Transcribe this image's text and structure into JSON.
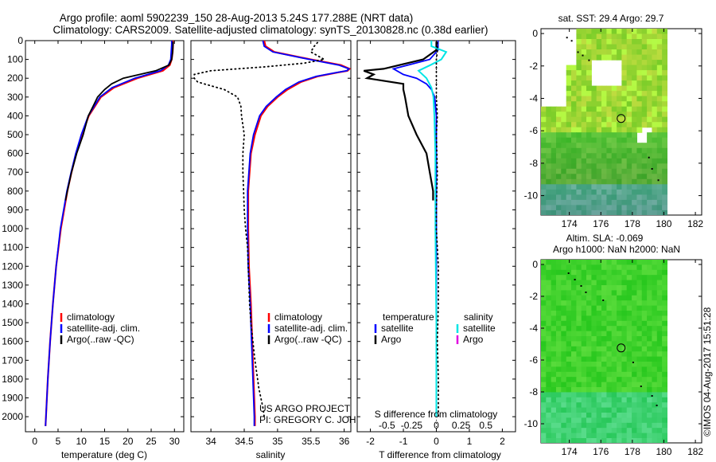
{
  "title": {
    "line1": "Argo profile: aoml 5902239_150 28-Aug-2013 5.24S 177.288E (NRT data)",
    "line2": "Climatology: CARS2009. Satellite-adjusted climatology: synTS_20130828.nc (0.38d earlier)"
  },
  "chart_data": [
    {
      "type": "line",
      "name": "temperature",
      "xlabel": "temperature (deg C)",
      "ylabel": "",
      "xlim": [
        -2,
        32
      ],
      "ylim": [
        2080,
        0
      ],
      "xticks": [
        0,
        5,
        10,
        15,
        20,
        25,
        30
      ],
      "xticklabels": [
        "0",
        "5",
        "10",
        "15",
        "20",
        "25",
        "30"
      ],
      "yticks": [
        0,
        100,
        200,
        300,
        400,
        500,
        600,
        700,
        800,
        900,
        1000,
        1100,
        1200,
        1300,
        1400,
        1500,
        1600,
        1700,
        1800,
        1900,
        2000
      ],
      "yticklabels": [
        "0",
        "100",
        "200",
        "300",
        "400",
        "500",
        "600",
        "700",
        "800",
        "900",
        "1000",
        "1100",
        "1200",
        "1300",
        "1400",
        "1500",
        "1600",
        "1700",
        "1800",
        "1900",
        "2000"
      ],
      "legend": [
        "climatology",
        "satellite-adj. clim.",
        "Argo(..raw -QC)"
      ],
      "series": [
        {
          "name": "climatology",
          "color": "#ff0000",
          "depth": [
            0,
            20,
            60,
            100,
            130,
            160,
            200,
            250,
            300,
            400,
            500,
            600,
            700,
            800,
            900,
            1000,
            1200,
            1400,
            1600,
            1800,
            2000,
            2050
          ],
          "value": [
            29.7,
            29.7,
            29.6,
            29.4,
            29.0,
            27.5,
            22.0,
            17.0,
            14.2,
            11.6,
            10.1,
            8.9,
            7.9,
            7.0,
            6.3,
            5.6,
            4.6,
            3.9,
            3.3,
            2.8,
            2.4,
            2.3
          ]
        },
        {
          "name": "satellite-adj. clim.",
          "color": "#0000ff",
          "depth": [
            0,
            20,
            60,
            100,
            130,
            160,
            200,
            250,
            300,
            400,
            500,
            600,
            700,
            800,
            900,
            1000,
            1200,
            1400,
            1600,
            1800,
            2000,
            2050
          ],
          "value": [
            29.4,
            29.4,
            29.3,
            29.2,
            28.7,
            27.0,
            21.5,
            16.6,
            14.0,
            11.5,
            10.0,
            8.8,
            7.8,
            6.9,
            6.2,
            5.5,
            4.6,
            3.9,
            3.3,
            2.8,
            2.4,
            2.3
          ]
        },
        {
          "name": "Argo(..raw -QC)",
          "color": "#000000",
          "depth": [
            5,
            20,
            60,
            100,
            130,
            160,
            200,
            230,
            260,
            300,
            350,
            400,
            500,
            600,
            700,
            800,
            850
          ],
          "value": [
            29.7,
            29.7,
            29.6,
            29.4,
            28.8,
            26.0,
            19.0,
            16.5,
            15.0,
            13.5,
            12.5,
            11.5,
            10.4,
            9.0,
            7.9,
            7.0,
            6.6
          ]
        }
      ]
    },
    {
      "type": "line",
      "name": "salinity",
      "xlabel": "salinity",
      "ylabel": "",
      "xlim": [
        33.7,
        36.1
      ],
      "ylim": [
        2080,
        0
      ],
      "xticks": [
        34,
        34.5,
        35,
        35.5,
        36
      ],
      "xticklabels": [
        "34",
        "34.5",
        "35",
        "35.5",
        "36"
      ],
      "legend": [
        "climatology",
        "satellite-adj. clim.",
        "Argo(..raw -QC)"
      ],
      "series": [
        {
          "name": "climatology",
          "color": "#ff0000",
          "depth": [
            0,
            30,
            60,
            100,
            130,
            150,
            160,
            170,
            190,
            220,
            260,
            300,
            350,
            400,
            500,
            600,
            800,
            1000,
            1200,
            1400,
            1600,
            1800,
            2000,
            2050
          ],
          "value": [
            34.8,
            34.82,
            34.95,
            35.5,
            35.95,
            36.08,
            36.05,
            35.9,
            35.6,
            35.35,
            35.15,
            35.0,
            34.85,
            34.75,
            34.66,
            34.6,
            34.56,
            34.56,
            34.57,
            34.6,
            34.62,
            34.64,
            34.66,
            34.66
          ]
        },
        {
          "name": "satellite-adj. clim.",
          "color": "#0000ff",
          "depth": [
            0,
            30,
            60,
            100,
            130,
            150,
            160,
            170,
            190,
            220,
            260,
            300,
            350,
            400,
            500,
            600,
            800,
            1000,
            1200,
            1400,
            1600,
            1800,
            2000,
            2050
          ],
          "value": [
            34.78,
            34.8,
            34.93,
            35.48,
            35.92,
            36.07,
            36.04,
            35.88,
            35.58,
            35.32,
            35.12,
            34.98,
            34.83,
            34.73,
            34.64,
            34.59,
            34.55,
            34.55,
            34.56,
            34.59,
            34.61,
            34.63,
            34.65,
            34.65
          ]
        },
        {
          "name": "Argo(..raw -QC)",
          "color": "#000000",
          "style": "dotted",
          "depth": [
            10,
            30,
            60,
            80,
            100,
            120,
            140,
            160,
            180,
            200,
            220,
            240,
            260,
            280,
            300,
            350,
            400,
            450,
            500,
            600,
            700,
            800,
            900,
            1000,
            1100,
            1200,
            1300,
            1400,
            1500,
            1600,
            1700,
            1800,
            1850,
            1900,
            1950,
            2000
          ],
          "value": [
            35.6,
            35.55,
            35.5,
            35.6,
            35.7,
            35.4,
            34.8,
            34.0,
            33.75,
            33.75,
            33.8,
            34.0,
            34.2,
            34.3,
            34.4,
            34.45,
            34.46,
            34.48,
            34.5,
            34.48,
            34.48,
            34.49,
            34.5,
            34.52,
            34.55,
            34.56,
            34.57,
            34.58,
            34.6,
            34.63,
            34.66,
            34.7,
            34.72,
            34.75,
            34.78,
            34.8
          ]
        }
      ]
    },
    {
      "type": "line",
      "name": "difference",
      "xlabel_top": "S difference from climatology",
      "xlabel_bottom": "T difference from climatology",
      "xlim_T": [
        -2.4,
        2.4
      ],
      "xlim_S": [
        -0.8,
        0.8
      ],
      "ylim": [
        2080,
        0
      ],
      "xticks_T": [
        -2,
        -1,
        0,
        1,
        2
      ],
      "xticklabels_T": [
        "-2",
        "-1",
        "0",
        "1",
        "2"
      ],
      "xticks_S": [
        -0.5,
        -0.25,
        0,
        0.25,
        0.5
      ],
      "xticklabels_S": [
        "-0.5",
        "-0.25",
        "0",
        "0.25",
        "0.5"
      ],
      "legend_left_title": "temperature",
      "legend_left": [
        "satellite",
        "Argo"
      ],
      "legend_right_title": "salinity",
      "legend_right": [
        "satellite",
        "Argo"
      ],
      "series": [
        {
          "name": "T satellite",
          "color": "#0000ff",
          "depth": [
            0,
            50,
            100,
            150,
            180,
            200,
            230,
            260,
            300,
            400,
            600,
            800,
            1000,
            1500,
            2000
          ],
          "value": [
            0.05,
            0.05,
            -0.2,
            -1.3,
            -1.0,
            -0.6,
            -0.3,
            -0.15,
            -0.05,
            0,
            0,
            0,
            0,
            0,
            0
          ]
        },
        {
          "name": "T Argo",
          "color": "#000000",
          "depth": [
            5,
            50,
            100,
            150,
            160,
            180,
            200,
            230,
            260,
            300,
            350,
            400,
            500,
            600,
            700,
            800,
            850
          ],
          "value": [
            0.0,
            0.0,
            -0.4,
            -1.6,
            -2.2,
            -1.9,
            -2.1,
            -1.0,
            -1.0,
            -0.95,
            -0.9,
            -0.85,
            -0.6,
            -0.3,
            -0.2,
            -0.1,
            -0.1
          ]
        },
        {
          "name": "S satellite",
          "color": "#00e5e5",
          "depth": [
            0,
            30,
            60,
            100,
            130,
            160,
            200,
            250,
            300,
            400,
            600,
            800,
            1000,
            1500,
            2000
          ],
          "value": [
            -0.05,
            -0.05,
            0.1,
            0.05,
            -0.06,
            -0.18,
            -0.1,
            -0.05,
            -0.03,
            -0.02,
            -0.01,
            -0.01,
            -0.01,
            0,
            0
          ]
        },
        {
          "name": "S Argo",
          "color": "#000000",
          "style": "dotted",
          "depth": [
            10,
            60,
            100,
            140,
            160,
            200,
            260,
            300,
            400,
            500,
            700,
            900,
            1000,
            1200,
            1400,
            1600,
            1800,
            2000
          ],
          "value": [
            0.01,
            0.01,
            0.0,
            0.0,
            0.0,
            0.0,
            0.0,
            0.0,
            0.01,
            0.0,
            0.01,
            0.0,
            0.0,
            0.02,
            0.02,
            0.01,
            0.02,
            0.02
          ]
        }
      ]
    },
    {
      "type": "heatmap",
      "name": "sat-sst-map",
      "title": "sat. SST: 29.4  Argo: 29.7",
      "xlim": [
        172.2,
        182.4
      ],
      "ylim": [
        -11.2,
        0.3
      ],
      "xticks": [
        174,
        176,
        178,
        180,
        182
      ],
      "xticklabels": [
        "174",
        "176",
        "178",
        "180",
        "182"
      ],
      "yticks": [
        0,
        -2,
        -4,
        -6,
        -8,
        -10
      ],
      "yticklabels": [
        "0",
        "-2",
        "-4",
        "-6",
        "-8",
        "-10"
      ],
      "float_position": {
        "lon": 177.288,
        "lat": -5.24
      }
    },
    {
      "type": "heatmap",
      "name": "altimetry-map",
      "title_line1": "Altim. SLA: -0.069",
      "title_line2": "Argo h1000: NaN h2000: NaN",
      "xlim": [
        172.2,
        182.4
      ],
      "ylim": [
        -11.2,
        0.3
      ],
      "xticks": [
        174,
        176,
        178,
        180,
        182
      ],
      "xticklabels": [
        "174",
        "176",
        "178",
        "180",
        "182"
      ],
      "yticks": [
        0,
        -2,
        -4,
        -6,
        -8,
        -10
      ],
      "yticklabels": [
        "0",
        "-2",
        "-4",
        "-6",
        "-8",
        "-10"
      ],
      "float_position": {
        "lon": 177.288,
        "lat": -5.24
      }
    }
  ],
  "annotations": {
    "project_line1": "US ARGO PROJECT",
    "project_line2": "PI: GREGORY C. JOHNSON",
    "imos_stamp": "©IMOS 04-Aug-2017 15:51:28"
  },
  "colors": {
    "climatology": "#ff0000",
    "satellite": "#0000ff",
    "argo": "#000000",
    "salinity_satellite": "#00e5e5",
    "salinity_argo": "#e000e0"
  }
}
